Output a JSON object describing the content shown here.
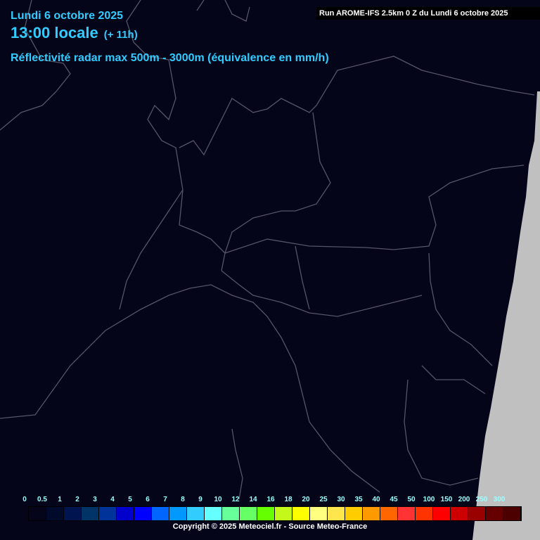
{
  "header": {
    "date": "Lundi 6 octobre 2025",
    "time": "13:00 locale",
    "lead": "(+ 11h)",
    "parameter": "Réflectivité radar max 500m - 3000m (équivalence en mm/h)",
    "run": "Run AROME-IFS 2.5km 0 Z du Lundi 6 octobre 2025"
  },
  "legend": {
    "labels": [
      "0",
      "0.5",
      "1",
      "2",
      "3",
      "4",
      "5",
      "6",
      "7",
      "8",
      "9",
      "10",
      "12",
      "14",
      "16",
      "18",
      "20",
      "25",
      "30",
      "35",
      "40",
      "45",
      "50",
      "100",
      "150",
      "200",
      "250",
      "300"
    ],
    "colors": [
      "#05051a",
      "#000a2a",
      "#001450",
      "#003366",
      "#003399",
      "#0000cc",
      "#0000ff",
      "#0066ff",
      "#0099ff",
      "#33ccff",
      "#66ffff",
      "#66ff99",
      "#66ff66",
      "#66ff00",
      "#c3f81a",
      "#ffff00",
      "#ffff80",
      "#ffe64d",
      "#ffcc00",
      "#ff9900",
      "#ff6600",
      "#ff3333",
      "#ff3300",
      "#ff0000",
      "#cc0000",
      "#990000",
      "#660000",
      "#4d0000"
    ]
  },
  "copyright": "Copyright © 2025 Meteociel.fr - Source Meteo-France",
  "colors": {
    "background": "#05051a",
    "borders": "#555566",
    "out_of_domain": "#c0c0c0",
    "title": "#33ccff"
  }
}
